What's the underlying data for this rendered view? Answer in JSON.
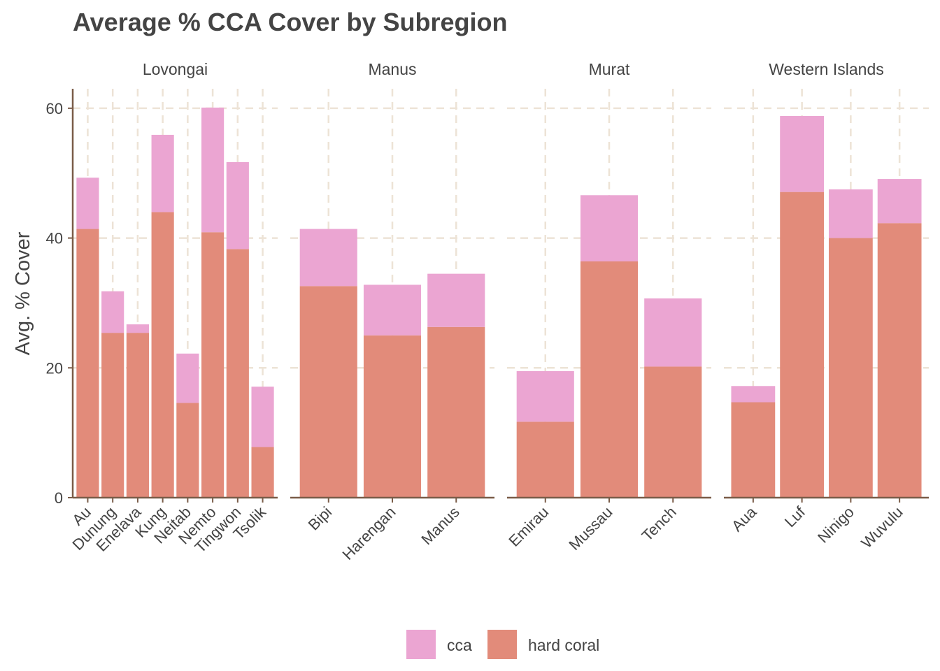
{
  "chart_data": {
    "type": "bar",
    "stacked": true,
    "title": "Average % CCA Cover by Subregion",
    "ylabel": "Avg. % Cover",
    "xlabel": "",
    "ylim": [
      0,
      63
    ],
    "yticks": [
      0,
      20,
      40,
      60
    ],
    "grid": true,
    "legend_position": "bottom",
    "legend": [
      {
        "name": "cca",
        "color": "#EBA5D2"
      },
      {
        "name": "hard coral",
        "color": "#E28B7A"
      }
    ],
    "facets": [
      {
        "name": "Lovongai",
        "categories": [
          "Au",
          "Dunung",
          "Enelava",
          "Kung",
          "Neitab",
          "Nemto",
          "Tingwon",
          "Tsolik"
        ],
        "series": [
          {
            "name": "hard coral",
            "values": [
              41.4,
              25.4,
              25.4,
              44.0,
              14.6,
              40.9,
              38.3,
              7.8
            ]
          },
          {
            "name": "cca",
            "values": [
              7.9,
              6.4,
              1.3,
              11.9,
              7.6,
              19.2,
              13.4,
              9.3
            ]
          }
        ]
      },
      {
        "name": "Manus",
        "categories": [
          "Bipi",
          "Harengan",
          "Manus"
        ],
        "series": [
          {
            "name": "hard coral",
            "values": [
              32.6,
              25.0,
              26.3
            ]
          },
          {
            "name": "cca",
            "values": [
              8.8,
              7.8,
              8.2
            ]
          }
        ]
      },
      {
        "name": "Murat",
        "categories": [
          "Emirau",
          "Mussau",
          "Tench"
        ],
        "series": [
          {
            "name": "hard coral",
            "values": [
              11.7,
              36.4,
              20.2
            ]
          },
          {
            "name": "cca",
            "values": [
              7.8,
              10.2,
              10.5
            ]
          }
        ]
      },
      {
        "name": "Western Islands",
        "categories": [
          "Aua",
          "Luf",
          "Ninigo",
          "Wuvulu"
        ],
        "series": [
          {
            "name": "hard coral",
            "values": [
              14.7,
              47.1,
              40.0,
              42.3
            ]
          },
          {
            "name": "cca",
            "values": [
              2.5,
              11.7,
              7.5,
              6.8
            ]
          }
        ]
      }
    ]
  }
}
